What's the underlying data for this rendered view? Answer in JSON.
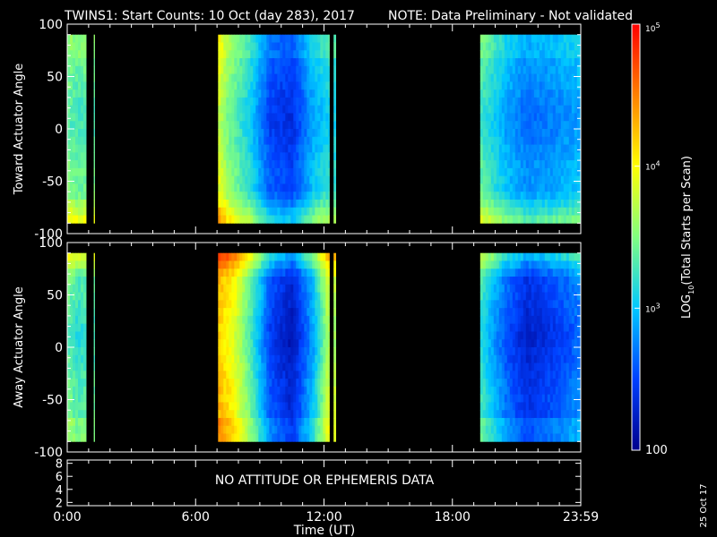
{
  "title": {
    "main": "TWINS1: Start Counts: 10 Oct (day 283), 2017",
    "note": "NOTE: Data Preliminary - Not validated",
    "note_color": "#ff2020"
  },
  "chart_data": [
    {
      "type": "heatmap",
      "ylabel": "Toward Actuator Angle",
      "ylim": [
        -100,
        100
      ],
      "yticks": [
        "100",
        "50",
        "0",
        "-50",
        "-100"
      ],
      "ytick_values": [
        100,
        50,
        0,
        -50,
        -100
      ],
      "angle_range": [
        -90,
        90
      ],
      "data_intervals_hours": [
        [
          0.0,
          0.88
        ],
        [
          1.24,
          1.28
        ],
        [
          7.05,
          12.25
        ],
        [
          12.45,
          12.55
        ],
        [
          19.3,
          24.0
        ]
      ],
      "mean_log10_level_by_hour": [
        {
          "hour": 0.0,
          "level": 3.5
        },
        {
          "hour": 0.5,
          "level": 3.4
        },
        {
          "hour": 7.1,
          "level": 3.9
        },
        {
          "hour": 7.5,
          "level": 3.6
        },
        {
          "hour": 8.5,
          "level": 3.2
        },
        {
          "hour": 9.5,
          "level": 2.6
        },
        {
          "hour": 10.5,
          "level": 2.5
        },
        {
          "hour": 11.5,
          "level": 3.0
        },
        {
          "hour": 12.2,
          "level": 3.2
        },
        {
          "hour": 19.3,
          "level": 3.4
        },
        {
          "hour": 20.5,
          "level": 3.0
        },
        {
          "hour": 21.5,
          "level": 2.8
        },
        {
          "hour": 23.0,
          "level": 2.9
        },
        {
          "hour": 24.0,
          "level": 3.0
        }
      ]
    },
    {
      "type": "heatmap",
      "ylabel": "Away Actuator Angle",
      "ylim": [
        -100,
        100
      ],
      "yticks": [
        "100",
        "50",
        "0",
        "-50",
        "-100"
      ],
      "ytick_values": [
        100,
        50,
        0,
        -50,
        -100
      ],
      "angle_range": [
        -90,
        90
      ],
      "data_intervals_hours": [
        [
          0.0,
          0.88
        ],
        [
          1.24,
          1.28
        ],
        [
          7.05,
          12.25
        ],
        [
          12.45,
          12.55
        ],
        [
          19.3,
          24.0
        ]
      ],
      "mean_log10_level_by_hour": [
        {
          "hour": 0.0,
          "level": 3.5
        },
        {
          "hour": 0.5,
          "level": 3.3
        },
        {
          "hour": 7.1,
          "level": 4.3
        },
        {
          "hour": 7.8,
          "level": 4.0
        },
        {
          "hour": 8.6,
          "level": 3.4
        },
        {
          "hour": 9.5,
          "level": 2.6
        },
        {
          "hour": 10.5,
          "level": 2.3
        },
        {
          "hour": 11.5,
          "level": 3.0
        },
        {
          "hour": 12.2,
          "level": 3.8
        },
        {
          "hour": 19.3,
          "level": 3.3
        },
        {
          "hour": 20.5,
          "level": 2.7
        },
        {
          "hour": 21.5,
          "level": 2.4
        },
        {
          "hour": 23.0,
          "level": 2.6
        },
        {
          "hour": 24.0,
          "level": 2.8
        }
      ]
    }
  ],
  "colorbar": {
    "label": "LOG10(Total Starts per Scan)",
    "label_prefix": "LOG",
    "label_sub": "10",
    "label_suffix": "(Total Starts per Scan)",
    "ticks": [
      {
        "value": 100,
        "text": "100"
      },
      {
        "value": 1000,
        "base": "10",
        "exp": "3"
      },
      {
        "value": 10000,
        "base": "10",
        "exp": "4"
      },
      {
        "value": 100000,
        "base": "10",
        "exp": "5"
      }
    ],
    "range": [
      100,
      100000
    ],
    "scale": "log",
    "colors": [
      "#00008c",
      "#0040ff",
      "#00c8ff",
      "#80ff80",
      "#ffff00",
      "#ff8000",
      "#ff0000"
    ]
  },
  "ephemeris_panel": {
    "message": "NO ATTITUDE OR EPHEMERIS DATA",
    "yticks": [
      "8",
      "6",
      "4",
      "2"
    ],
    "ytick_values": [
      8,
      6,
      4,
      2
    ],
    "ylim": [
      1.5,
      8.5
    ]
  },
  "time_axis": {
    "label": "Time (UT)",
    "ticks": [
      {
        "hour": 0,
        "text": "0:00"
      },
      {
        "hour": 6,
        "text": "6:00"
      },
      {
        "hour": 12,
        "text": "12:00"
      },
      {
        "hour": 18,
        "text": "18:00"
      },
      {
        "hour": 24,
        "text": "23:59"
      }
    ],
    "xlim": [
      0,
      24
    ]
  },
  "date_stamp": "25 Oct 17"
}
